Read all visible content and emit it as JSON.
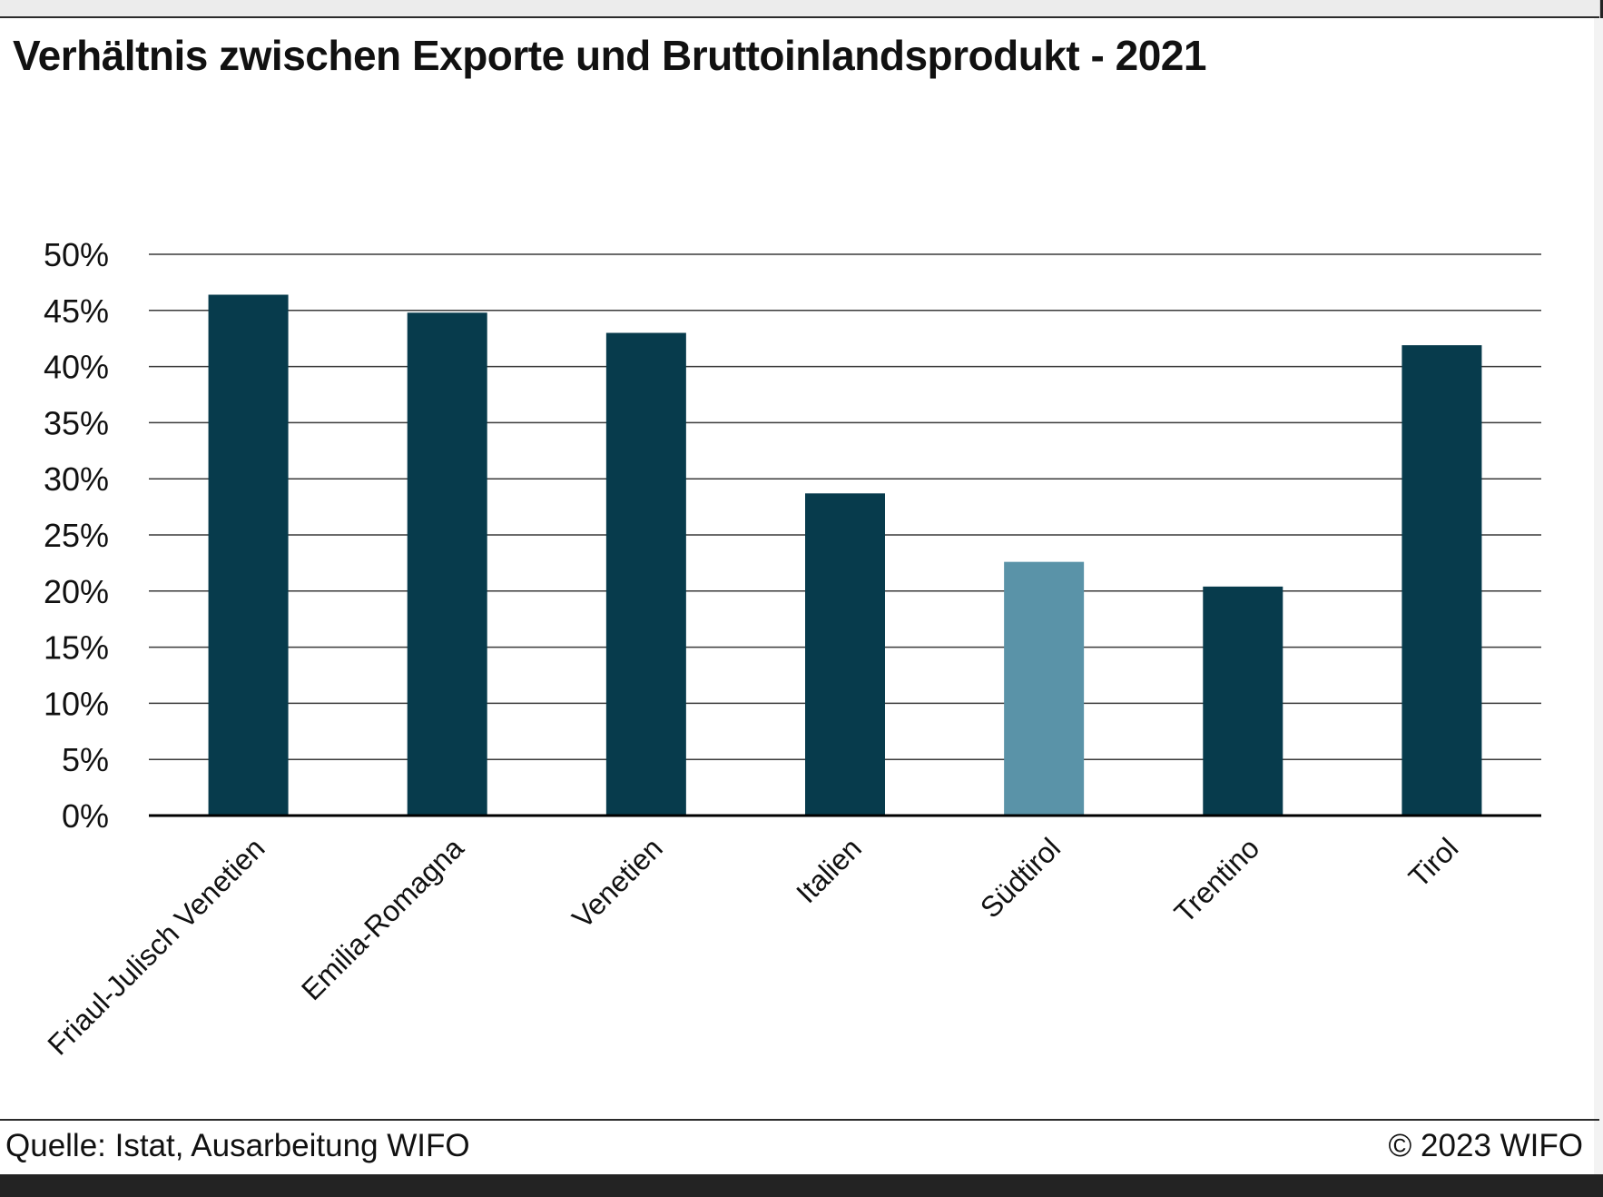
{
  "title": "Verhältnis zwischen Exporte und Bruttoinlandsprodukt - 2021",
  "source": "Quelle: Istat, Ausarbeitung WIFO",
  "copyright": "© 2023 WIFO",
  "colors": {
    "bar": "#073b4c",
    "highlight": "#5a93a8",
    "grid": "#3a3a3a",
    "text": "#111111"
  },
  "chart_data": {
    "type": "bar",
    "title": "Verhältnis zwischen Exporte und Bruttoinlandsprodukt - 2021",
    "xlabel": "",
    "ylabel": "",
    "ylim": [
      0,
      50
    ],
    "y_unit": "%",
    "y_ticks": [
      0,
      5,
      10,
      15,
      20,
      25,
      30,
      35,
      40,
      45,
      50
    ],
    "y_tick_labels": [
      "0%",
      "5%",
      "10%",
      "15%",
      "20%",
      "25%",
      "30%",
      "35%",
      "40%",
      "45%",
      "50%"
    ],
    "grid": true,
    "legend": "none",
    "categories": [
      "Friaul-Julisch Venetien",
      "Emilia-Romagna",
      "Venetien",
      "Italien",
      "Südtirol",
      "Trentino",
      "Tirol"
    ],
    "values": [
      46.4,
      44.8,
      43.0,
      28.7,
      22.6,
      20.4,
      41.9
    ],
    "highlighted": "Südtirol"
  }
}
